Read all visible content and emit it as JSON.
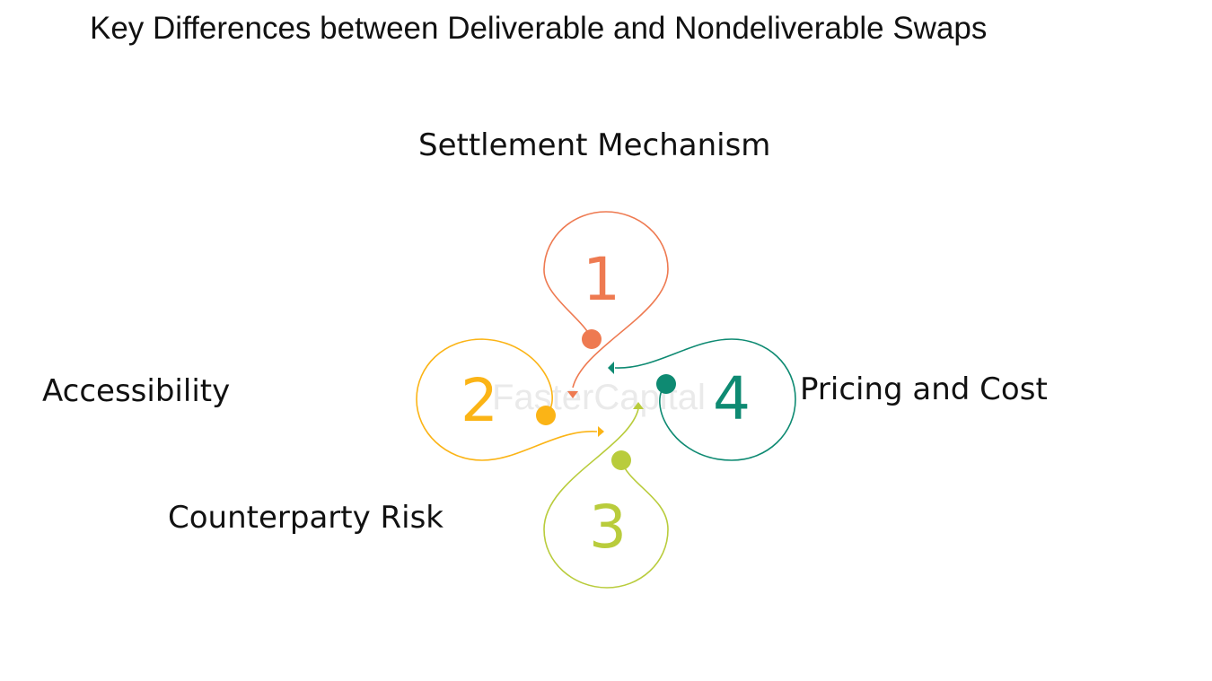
{
  "title": "Key Differences between Deliverable and Nondeliverable Swaps",
  "watermark": "FasterCapital",
  "items": [
    {
      "number": "1",
      "label": "Settlement Mechanism",
      "color": "#ee7a51"
    },
    {
      "number": "2",
      "label": "Accessibility",
      "color": "#fbb416"
    },
    {
      "number": "3",
      "label": "Counterparty Risk",
      "color": "#b9cc3c"
    },
    {
      "number": "4",
      "label": "Pricing and Cost",
      "color": "#0e8a72"
    }
  ]
}
